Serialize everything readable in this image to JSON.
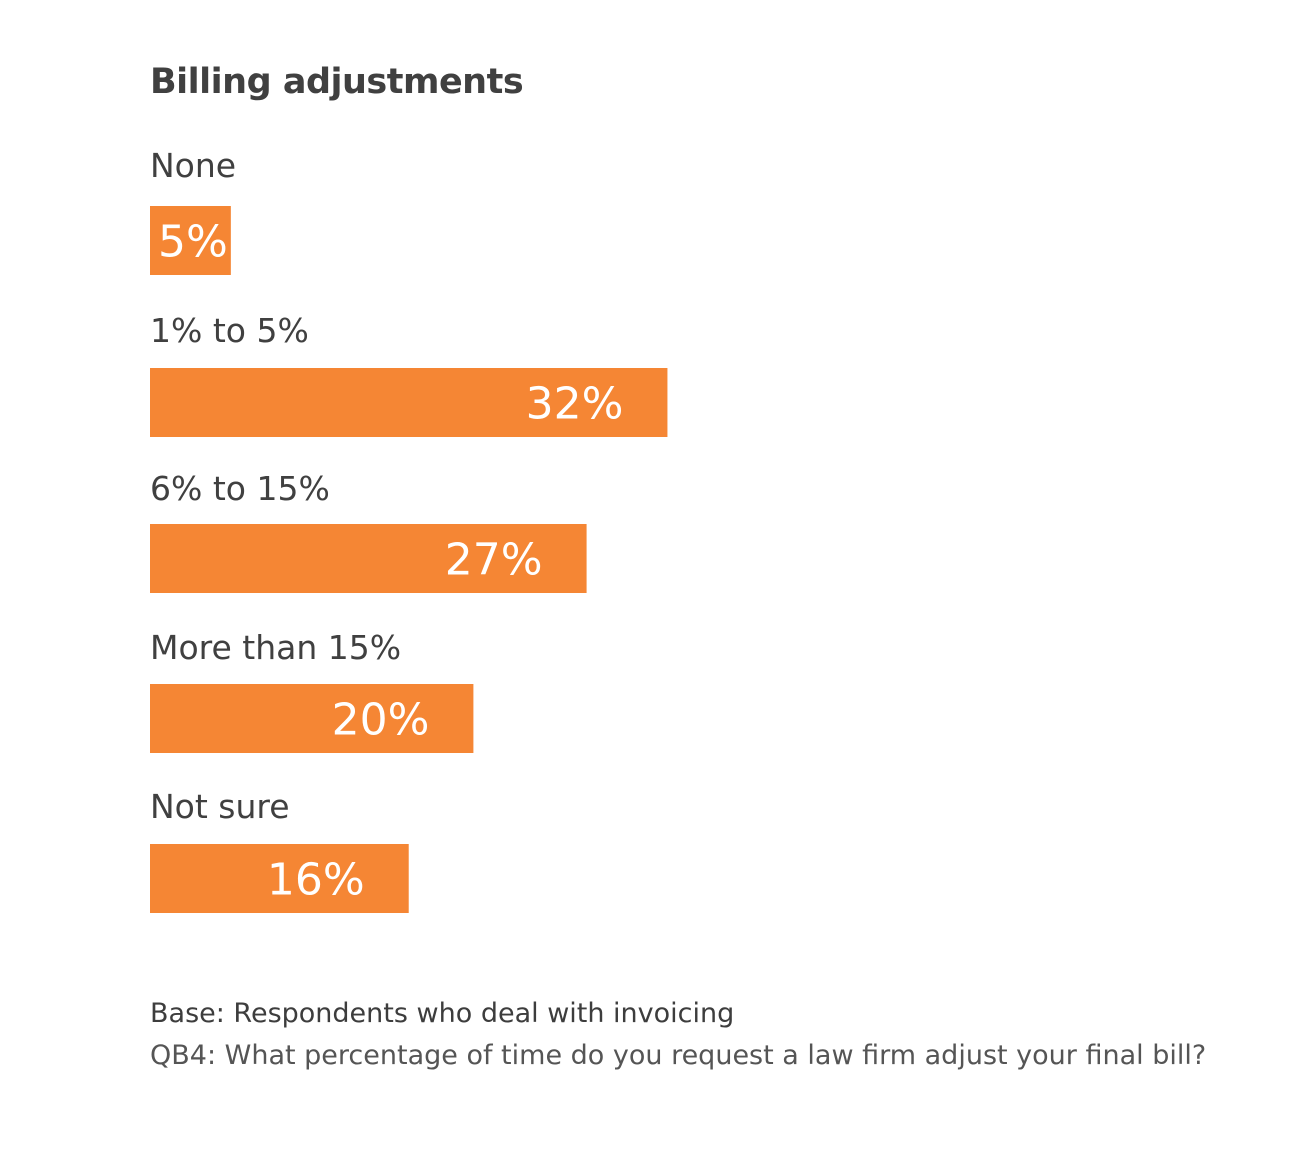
{
  "chart_data": {
    "type": "bar",
    "orientation": "horizontal",
    "title": "Billing adjustments",
    "categories": [
      "None",
      "1% to 5%",
      "6% to 15%",
      "More than 15%",
      "Not sure"
    ],
    "values": [
      5,
      32,
      27,
      20,
      16
    ],
    "value_labels": [
      "5%",
      "32%",
      "27%",
      "20%",
      "16%"
    ],
    "unit": "%",
    "xlim": [
      0,
      100
    ],
    "bar_color": "#f58634",
    "grid": false,
    "legend": "none"
  },
  "footnotes": {
    "base": "Base: Respondents who deal with invoicing",
    "question": "QB4: What percentage of time do you request a law firm adjust your final bill?"
  }
}
